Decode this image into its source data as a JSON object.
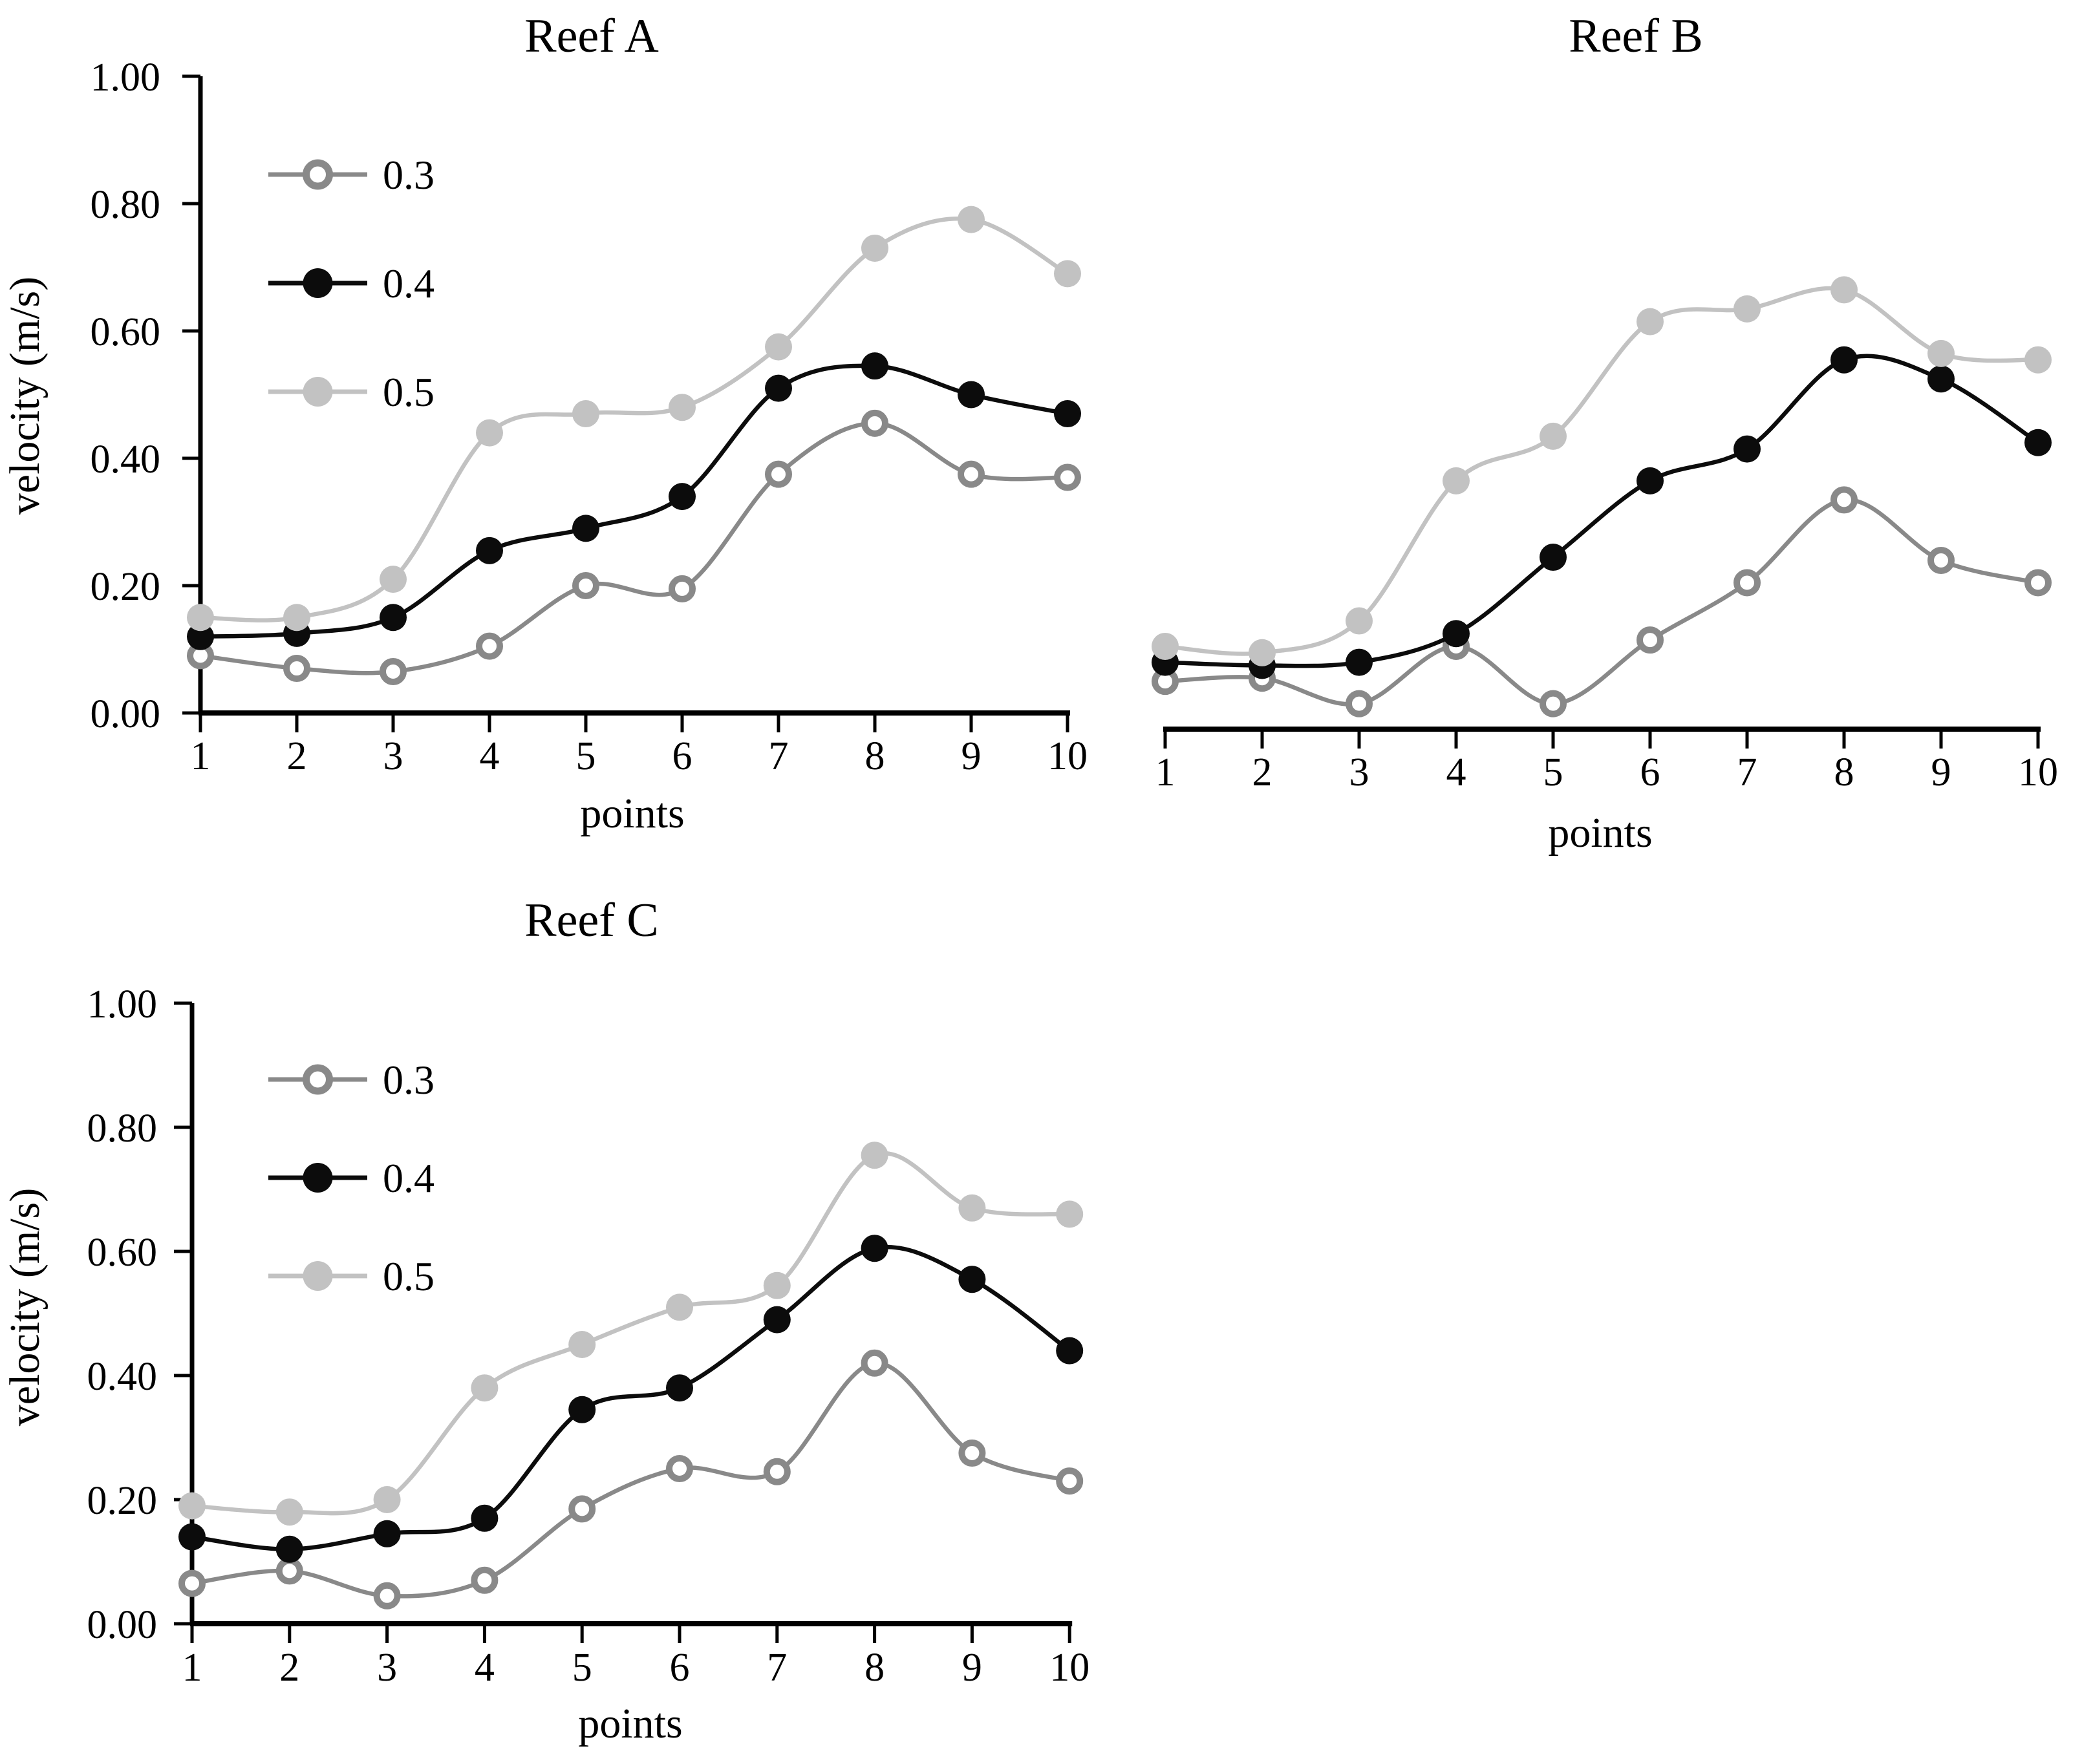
{
  "figure": {
    "y_tick_labels": [
      "1.00",
      "0.80",
      "0.60",
      "0.40",
      "0.20",
      "0.00"
    ],
    "y_tick_values": [
      1.0,
      0.8,
      0.6,
      0.4,
      0.2,
      0.0
    ],
    "x_tick_labels": [
      "1",
      "2",
      "3",
      "4",
      "5",
      "6",
      "7",
      "8",
      "9",
      "10"
    ],
    "x_axis_title": "points",
    "y_axis_title": "velocity (m/s)",
    "colors": {
      "series_03": "#898989",
      "series_04": "#0c0c0c",
      "series_05": "#c2c2c2",
      "axis": "#000000"
    }
  },
  "chart_data": [
    {
      "type": "line",
      "title": "Reef A",
      "xlabel": "points",
      "ylabel": "velocity (m/s)",
      "x": [
        1,
        2,
        3,
        4,
        5,
        6,
        7,
        8,
        9,
        10
      ],
      "ylim": [
        0.0,
        1.0
      ],
      "grid": false,
      "legend_position": "top-left-inside",
      "show_legend": true,
      "show_y_axis": true,
      "series": [
        {
          "name": "0.3",
          "marker": "open-circle",
          "color": "#898989",
          "values": [
            0.09,
            0.07,
            0.065,
            0.105,
            0.2,
            0.195,
            0.375,
            0.455,
            0.375,
            0.37
          ]
        },
        {
          "name": "0.4",
          "marker": "filled-circle",
          "color": "#0c0c0c",
          "values": [
            0.12,
            0.125,
            0.15,
            0.255,
            0.29,
            0.34,
            0.51,
            0.545,
            0.5,
            0.47
          ]
        },
        {
          "name": "0.5",
          "marker": "filled-circle",
          "color": "#c2c2c2",
          "values": [
            0.15,
            0.15,
            0.21,
            0.44,
            0.47,
            0.48,
            0.575,
            0.73,
            0.775,
            0.69
          ]
        }
      ]
    },
    {
      "type": "line",
      "title": "Reef B",
      "xlabel": "points",
      "ylabel": "",
      "x": [
        1,
        2,
        3,
        4,
        5,
        6,
        7,
        8,
        9,
        10
      ],
      "ylim": [
        0.0,
        1.0
      ],
      "grid": false,
      "legend_position": "none",
      "show_legend": false,
      "show_y_axis": false,
      "series": [
        {
          "name": "0.3",
          "marker": "open-circle",
          "color": "#898989",
          "values": [
            0.075,
            0.08,
            0.04,
            0.13,
            0.04,
            0.14,
            0.23,
            0.36,
            0.265,
            0.23
          ]
        },
        {
          "name": "0.4",
          "marker": "filled-circle",
          "color": "#0c0c0c",
          "values": [
            0.105,
            0.1,
            0.105,
            0.15,
            0.27,
            0.39,
            0.44,
            0.58,
            0.55,
            0.45
          ]
        },
        {
          "name": "0.5",
          "marker": "filled-circle",
          "color": "#c2c2c2",
          "values": [
            0.13,
            0.12,
            0.17,
            0.39,
            0.46,
            0.64,
            0.66,
            0.69,
            0.59,
            0.58
          ]
        }
      ]
    },
    {
      "type": "line",
      "title": "Reef C",
      "xlabel": "points",
      "ylabel": "velocity (m/s)",
      "x": [
        1,
        2,
        3,
        4,
        5,
        6,
        7,
        8,
        9,
        10
      ],
      "ylim": [
        0.0,
        1.0
      ],
      "grid": false,
      "legend_position": "top-left-inside",
      "show_legend": true,
      "show_y_axis": true,
      "series": [
        {
          "name": "0.3",
          "marker": "open-circle",
          "color": "#898989",
          "values": [
            0.065,
            0.085,
            0.045,
            0.07,
            0.185,
            0.25,
            0.245,
            0.42,
            0.275,
            0.23
          ]
        },
        {
          "name": "0.4",
          "marker": "filled-circle",
          "color": "#0c0c0c",
          "values": [
            0.14,
            0.12,
            0.145,
            0.17,
            0.345,
            0.38,
            0.49,
            0.605,
            0.555,
            0.44
          ]
        },
        {
          "name": "0.5",
          "marker": "filled-circle",
          "color": "#c2c2c2",
          "values": [
            0.19,
            0.18,
            0.2,
            0.38,
            0.45,
            0.51,
            0.545,
            0.755,
            0.67,
            0.66
          ]
        }
      ]
    }
  ]
}
